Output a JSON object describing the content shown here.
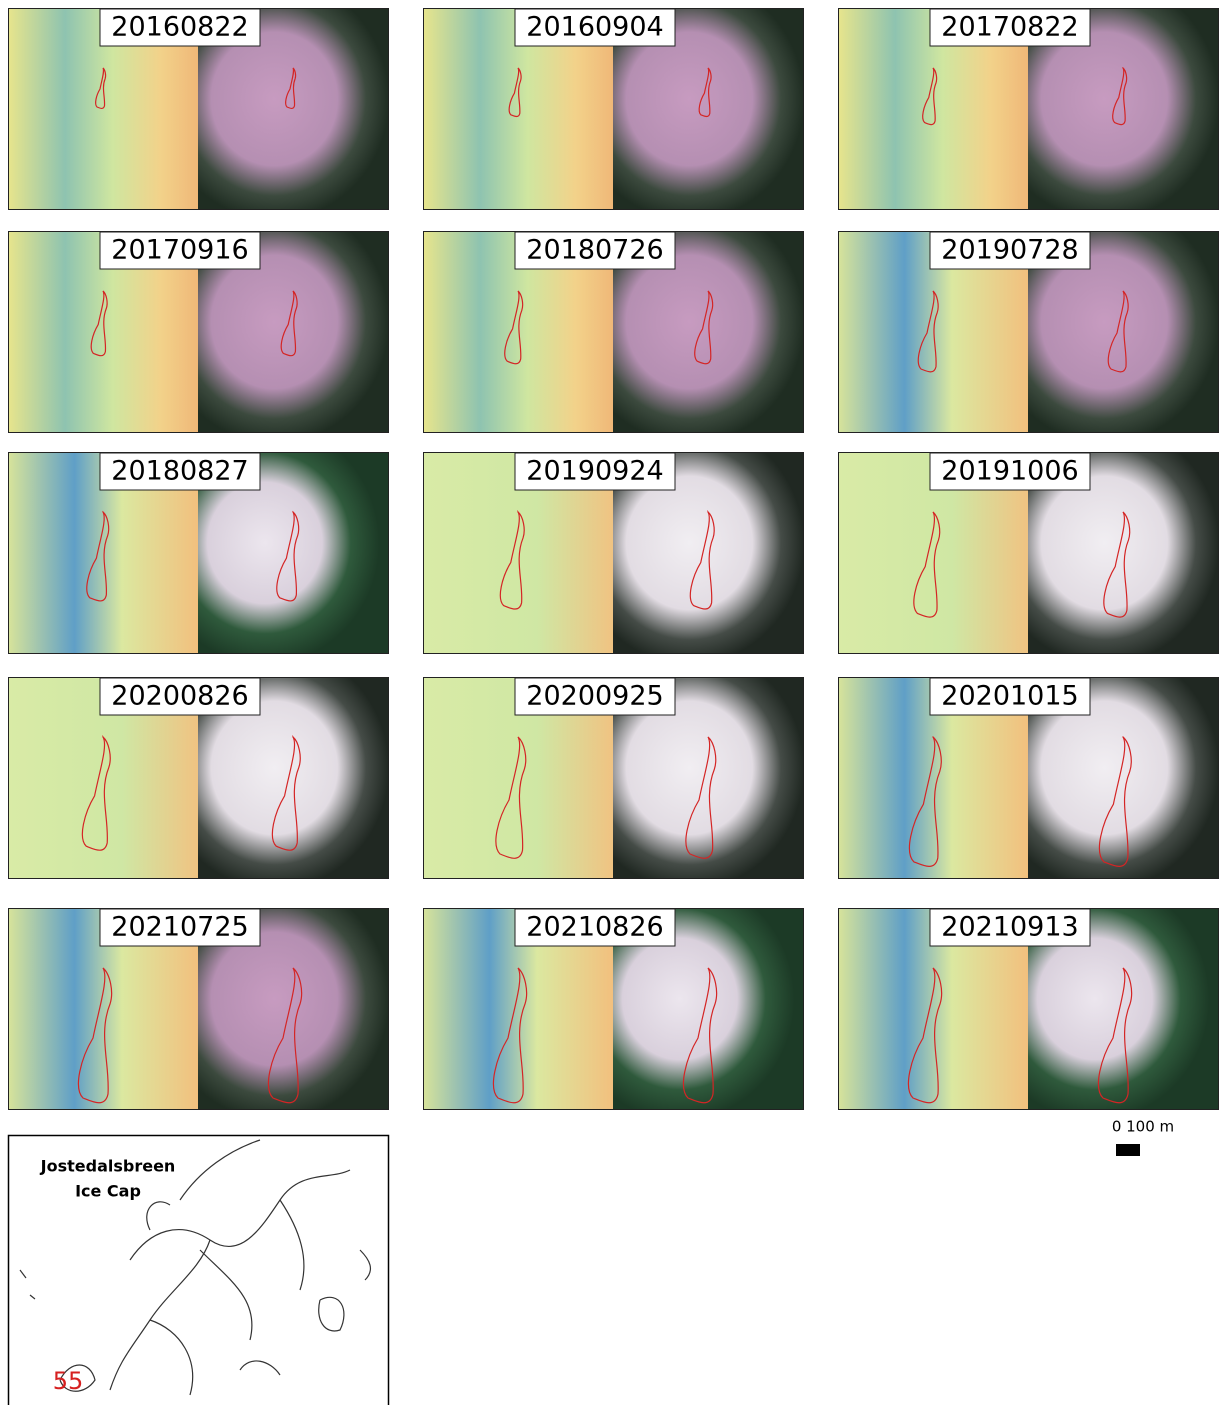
{
  "panels": [
    {
      "label": "20160822"
    },
    {
      "label": "20160904"
    },
    {
      "label": "20170822"
    },
    {
      "label": "20170916"
    },
    {
      "label": "20180726"
    },
    {
      "label": "20190728"
    },
    {
      "label": "20180827"
    },
    {
      "label": "20190924"
    },
    {
      "label": "20191006"
    },
    {
      "label": "20200826"
    },
    {
      "label": "20200925"
    },
    {
      "label": "20201015"
    },
    {
      "label": "20210725"
    },
    {
      "label": "20210826"
    },
    {
      "label": "20210913"
    }
  ],
  "scale_bar": {
    "label": "0 100 m"
  },
  "inset": {
    "title_lines": [
      "Jostedalsbreen",
      "Ice Cap"
    ],
    "marker": "55"
  }
}
